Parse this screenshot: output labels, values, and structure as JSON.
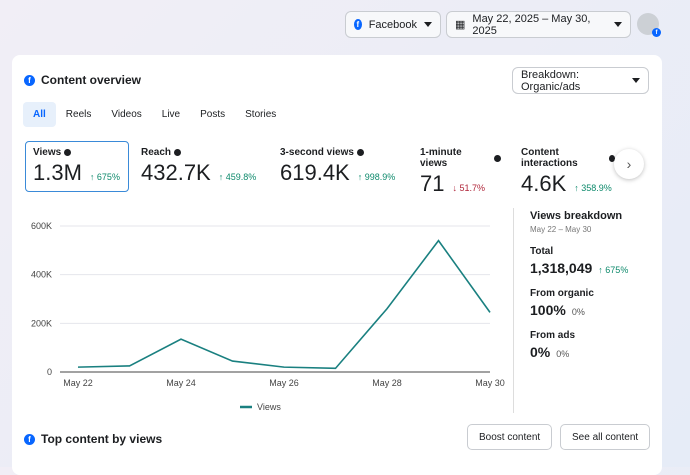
{
  "header": {
    "platform": "Facebook",
    "date_range": "May 22, 2025 – May 30, 2025"
  },
  "overview": {
    "title": "Content overview",
    "breakdown": "Breakdown: Organic/ads",
    "tabs": [
      "All",
      "Reels",
      "Videos",
      "Live",
      "Posts",
      "Stories"
    ],
    "metrics": [
      {
        "label": "Views",
        "value": "1.3M",
        "delta": "↑ 675%",
        "dir": "up"
      },
      {
        "label": "Reach",
        "value": "432.7K",
        "delta": "↑ 459.8%",
        "dir": "up"
      },
      {
        "label": "3-second views",
        "value": "619.4K",
        "delta": "↑ 998.9%",
        "dir": "up"
      },
      {
        "label": "1-minute views",
        "value": "71",
        "delta": "↓ 51.7%",
        "dir": "down"
      },
      {
        "label": "Content interactions",
        "value": "4.6K",
        "delta": "↑ 358.9%",
        "dir": "up"
      }
    ]
  },
  "chart_data": {
    "type": "line",
    "x": [
      "May 22",
      "May 23",
      "May 24",
      "May 25",
      "May 26",
      "May 27",
      "May 28",
      "May 29",
      "May 30"
    ],
    "series": [
      {
        "name": "Views",
        "values": [
          20000,
          25000,
          135000,
          45000,
          20000,
          15000,
          260000,
          540000,
          245000
        ],
        "color": "#1a8080"
      }
    ],
    "xticks": [
      "May 22",
      "May 24",
      "May 26",
      "May 28",
      "May 30"
    ],
    "yticks": [
      "0",
      "200K",
      "400K",
      "600K"
    ],
    "ylim": [
      0,
      600000
    ],
    "grid": true,
    "legend": "bottom"
  },
  "breakdown": {
    "title": "Views breakdown",
    "subtitle": "May 22 – May 30",
    "total_label": "Total",
    "total": "1,318,049",
    "total_delta": "↑ 675%",
    "organic_label": "From organic",
    "organic": "100%",
    "organic_delta": "0%",
    "ads_label": "From ads",
    "ads": "0%",
    "ads_delta": "0%"
  },
  "top": {
    "title": "Top content by views",
    "boost": "Boost content",
    "see_all": "See all content"
  }
}
